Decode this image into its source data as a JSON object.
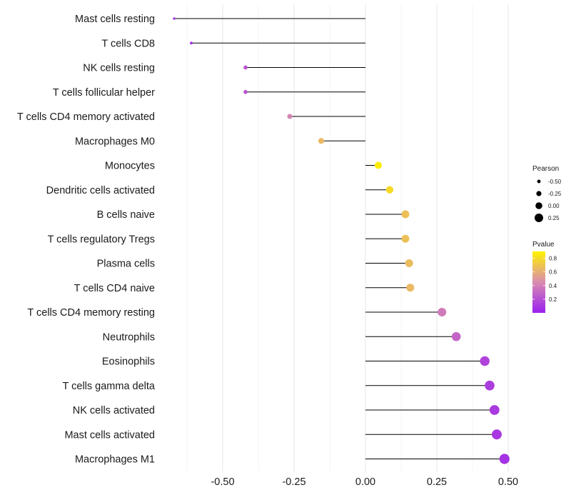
{
  "chart_data": {
    "type": "lollipop",
    "title": "",
    "xlabel": "",
    "ylabel": "",
    "xlim": [
      -0.75,
      0.55
    ],
    "x_ticks": [
      -0.5,
      -0.25,
      0.0,
      0.25,
      0.5
    ],
    "x_tick_labels": [
      "-0.50",
      "-0.25",
      "0.00",
      "0.25",
      "0.50"
    ],
    "categories": [
      "Mast cells resting",
      "T cells CD8",
      "NK cells resting",
      "T cells follicular helper",
      "T cells CD4 memory activated",
      "Macrophages M0",
      "Monocytes",
      "Dendritic cells activated",
      "B cells naive",
      "T cells regulatory  Tregs ",
      "Plasma cells",
      "T cells CD4 naive",
      "T cells CD4 memory resting",
      "Neutrophils",
      "Eosinophils",
      "T cells gamma delta",
      "NK cells activated",
      "Mast cells activated",
      "Macrophages M1"
    ],
    "pearson": [
      -0.67,
      -0.61,
      -0.42,
      -0.42,
      -0.265,
      -0.155,
      0.045,
      0.085,
      0.14,
      0.14,
      0.153,
      0.157,
      0.268,
      0.318,
      0.418,
      0.435,
      0.452,
      0.46,
      0.487
    ],
    "pvalue": [
      0.02,
      0.05,
      0.22,
      0.22,
      0.42,
      0.65,
      0.88,
      0.8,
      0.68,
      0.68,
      0.66,
      0.65,
      0.38,
      0.29,
      0.15,
      0.13,
      0.11,
      0.1,
      0.08
    ],
    "grid": true,
    "legend": {
      "size_title": "Pearson",
      "size_breaks": [
        "-0.50",
        "-0.25",
        "0.00",
        "0.25"
      ],
      "size_values": [
        -0.5,
        -0.25,
        0.0,
        0.25
      ],
      "color_title": "Pvalue",
      "color_breaks": [
        "0.8",
        "0.6",
        "0.4",
        "0.2"
      ],
      "color_values": [
        0.8,
        0.6,
        0.4,
        0.2
      ],
      "color_range": [
        0.0,
        0.9
      ],
      "color_low": "#9A1FF0",
      "color_mid": "#D98CB0",
      "color_high": "#FFF200",
      "placement": "right"
    }
  }
}
